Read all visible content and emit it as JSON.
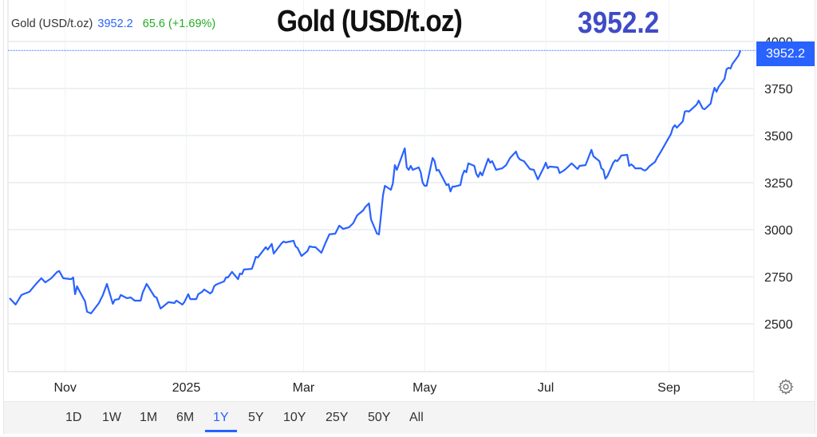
{
  "legend": {
    "name": "Gold (USD/t.oz)",
    "last": "3952.2",
    "change": "65.6 (+1.69%)"
  },
  "title": "Gold (USD/t.oz)",
  "headline_price": "3952.2",
  "price_tag": "3952.2",
  "colors": {
    "line": "#2962ff",
    "up": "#22ab22",
    "headline": "#3f4bc6",
    "grid": "#e9ecef"
  },
  "icons": {
    "settings": "gear-icon"
  },
  "range_buttons": [
    {
      "label": "1D"
    },
    {
      "label": "1W"
    },
    {
      "label": "1M"
    },
    {
      "label": "6M"
    },
    {
      "label": "1Y",
      "active": true
    },
    {
      "label": "5Y"
    },
    {
      "label": "10Y"
    },
    {
      "label": "25Y"
    },
    {
      "label": "50Y"
    },
    {
      "label": "All"
    }
  ],
  "chart_data": {
    "type": "line",
    "title": "",
    "xlabel": "",
    "ylabel": "",
    "xlim": [
      "2024-10-04",
      "2025-10-07"
    ],
    "ylim": [
      2250,
      4050
    ],
    "grid": true,
    "y_axis_position": "right",
    "yticks": [
      2500,
      2750,
      3000,
      3250,
      3500,
      3750,
      4000
    ],
    "xticks": [
      {
        "date": "2024-11-01",
        "label": "Nov"
      },
      {
        "date": "2025-01-01",
        "label": "2025"
      },
      {
        "date": "2025-03-01",
        "label": "Mar"
      },
      {
        "date": "2025-05-01",
        "label": "May"
      },
      {
        "date": "2025-07-01",
        "label": "Jul"
      },
      {
        "date": "2025-09-01",
        "label": "Sep"
      }
    ],
    "last_value": 3952.2,
    "series": [
      {
        "points": [
          [
            "2024-10-04",
            2636
          ],
          [
            "2024-10-07",
            2602
          ],
          [
            "2024-10-10",
            2653
          ],
          [
            "2024-10-14",
            2670
          ],
          [
            "2024-10-17",
            2708
          ],
          [
            "2024-10-20",
            2742
          ],
          [
            "2024-10-22",
            2720
          ],
          [
            "2024-10-25",
            2742
          ],
          [
            "2024-10-28",
            2776
          ],
          [
            "2024-10-29",
            2780
          ],
          [
            "2024-10-31",
            2742
          ],
          [
            "2024-11-04",
            2737
          ],
          [
            "2024-11-05",
            2746
          ],
          [
            "2024-11-06",
            2657
          ],
          [
            "2024-11-07",
            2699
          ],
          [
            "2024-11-08",
            2678
          ],
          [
            "2024-11-11",
            2619
          ],
          [
            "2024-11-12",
            2564
          ],
          [
            "2024-11-14",
            2555
          ],
          [
            "2024-11-18",
            2610
          ],
          [
            "2024-11-20",
            2653
          ],
          [
            "2024-11-22",
            2712
          ],
          [
            "2024-11-25",
            2606
          ],
          [
            "2024-11-26",
            2627
          ],
          [
            "2024-11-28",
            2631
          ],
          [
            "2024-11-29",
            2653
          ],
          [
            "2024-12-02",
            2636
          ],
          [
            "2024-12-04",
            2640
          ],
          [
            "2024-12-06",
            2623
          ],
          [
            "2024-12-09",
            2623
          ],
          [
            "2024-12-10",
            2665
          ],
          [
            "2024-12-12",
            2712
          ],
          [
            "2024-12-16",
            2644
          ],
          [
            "2024-12-17",
            2640
          ],
          [
            "2024-12-19",
            2581
          ],
          [
            "2024-12-20",
            2589
          ],
          [
            "2024-12-23",
            2615
          ],
          [
            "2024-12-26",
            2610
          ],
          [
            "2024-12-27",
            2623
          ],
          [
            "2024-12-30",
            2602
          ],
          [
            "2024-12-31",
            2615
          ],
          [
            "2025-01-02",
            2657
          ],
          [
            "2025-01-03",
            2631
          ],
          [
            "2025-01-06",
            2631
          ],
          [
            "2025-01-07",
            2657
          ],
          [
            "2025-01-09",
            2670
          ],
          [
            "2025-01-10",
            2682
          ],
          [
            "2025-01-13",
            2661
          ],
          [
            "2025-01-14",
            2670
          ],
          [
            "2025-01-15",
            2699
          ],
          [
            "2025-01-16",
            2708
          ],
          [
            "2025-01-20",
            2725
          ],
          [
            "2025-01-21",
            2746
          ],
          [
            "2025-01-22",
            2746
          ],
          [
            "2025-01-24",
            2776
          ],
          [
            "2025-01-27",
            2737
          ],
          [
            "2025-01-28",
            2767
          ],
          [
            "2025-01-29",
            2763
          ],
          [
            "2025-01-30",
            2788
          ],
          [
            "2025-02-03",
            2792
          ],
          [
            "2025-02-04",
            2822
          ],
          [
            "2025-02-05",
            2856
          ],
          [
            "2025-02-06",
            2852
          ],
          [
            "2025-02-10",
            2907
          ],
          [
            "2025-02-11",
            2894
          ],
          [
            "2025-02-13",
            2924
          ],
          [
            "2025-02-14",
            2873
          ],
          [
            "2025-02-18",
            2928
          ],
          [
            "2025-02-19",
            2937
          ],
          [
            "2025-02-20",
            2932
          ],
          [
            "2025-02-24",
            2941
          ],
          [
            "2025-02-25",
            2911
          ],
          [
            "2025-02-26",
            2903
          ],
          [
            "2025-02-28",
            2860
          ],
          [
            "2025-03-03",
            2886
          ],
          [
            "2025-03-04",
            2911
          ],
          [
            "2025-03-06",
            2907
          ],
          [
            "2025-03-07",
            2907
          ],
          [
            "2025-03-10",
            2877
          ],
          [
            "2025-03-12",
            2928
          ],
          [
            "2025-03-14",
            2975
          ],
          [
            "2025-03-17",
            2979
          ],
          [
            "2025-03-18",
            3000
          ],
          [
            "2025-03-19",
            3021
          ],
          [
            "2025-03-21",
            3004
          ],
          [
            "2025-03-24",
            3013
          ],
          [
            "2025-03-26",
            3034
          ],
          [
            "2025-03-28",
            3076
          ],
          [
            "2025-03-31",
            3102
          ],
          [
            "2025-04-01",
            3119
          ],
          [
            "2025-04-03",
            3140
          ],
          [
            "2025-04-04",
            3055
          ],
          [
            "2025-04-07",
            2979
          ],
          [
            "2025-04-08",
            2975
          ],
          [
            "2025-04-09",
            3076
          ],
          [
            "2025-04-10",
            3182
          ],
          [
            "2025-04-11",
            3233
          ],
          [
            "2025-04-14",
            3212
          ],
          [
            "2025-04-15",
            3246
          ],
          [
            "2025-04-16",
            3343
          ],
          [
            "2025-04-17",
            3318
          ],
          [
            "2025-04-21",
            3432
          ],
          [
            "2025-04-22",
            3331
          ],
          [
            "2025-04-23",
            3318
          ],
          [
            "2025-04-24",
            3339
          ],
          [
            "2025-04-25",
            3318
          ],
          [
            "2025-04-28",
            3331
          ],
          [
            "2025-04-29",
            3305
          ],
          [
            "2025-04-30",
            3250
          ],
          [
            "2025-05-01",
            3233
          ],
          [
            "2025-05-02",
            3233
          ],
          [
            "2025-05-05",
            3381
          ],
          [
            "2025-05-06",
            3364
          ],
          [
            "2025-05-07",
            3314
          ],
          [
            "2025-05-08",
            3318
          ],
          [
            "2025-05-12",
            3237
          ],
          [
            "2025-05-13",
            3242
          ],
          [
            "2025-05-14",
            3203
          ],
          [
            "2025-05-15",
            3229
          ],
          [
            "2025-05-16",
            3229
          ],
          [
            "2025-05-19",
            3237
          ],
          [
            "2025-05-20",
            3288
          ],
          [
            "2025-05-21",
            3314
          ],
          [
            "2025-05-22",
            3305
          ],
          [
            "2025-05-23",
            3352
          ],
          [
            "2025-05-26",
            3339
          ],
          [
            "2025-05-27",
            3297
          ],
          [
            "2025-05-28",
            3280
          ],
          [
            "2025-05-29",
            3305
          ],
          [
            "2025-05-30",
            3288
          ],
          [
            "2025-06-02",
            3377
          ],
          [
            "2025-06-03",
            3356
          ],
          [
            "2025-06-04",
            3364
          ],
          [
            "2025-06-06",
            3318
          ],
          [
            "2025-06-09",
            3326
          ],
          [
            "2025-06-11",
            3343
          ],
          [
            "2025-06-13",
            3381
          ],
          [
            "2025-06-16",
            3415
          ],
          [
            "2025-06-17",
            3386
          ],
          [
            "2025-06-18",
            3373
          ],
          [
            "2025-06-20",
            3364
          ],
          [
            "2025-06-23",
            3322
          ],
          [
            "2025-06-25",
            3318
          ],
          [
            "2025-06-27",
            3267
          ],
          [
            "2025-06-30",
            3331
          ],
          [
            "2025-07-01",
            3356
          ],
          [
            "2025-07-02",
            3326
          ],
          [
            "2025-07-03",
            3335
          ],
          [
            "2025-07-07",
            3331
          ],
          [
            "2025-07-08",
            3301
          ],
          [
            "2025-07-10",
            3314
          ],
          [
            "2025-07-11",
            3322
          ],
          [
            "2025-07-14",
            3352
          ],
          [
            "2025-07-15",
            3343
          ],
          [
            "2025-07-17",
            3322
          ],
          [
            "2025-07-18",
            3339
          ],
          [
            "2025-07-21",
            3343
          ],
          [
            "2025-07-22",
            3369
          ],
          [
            "2025-07-24",
            3424
          ],
          [
            "2025-07-25",
            3390
          ],
          [
            "2025-07-28",
            3364
          ],
          [
            "2025-07-29",
            3326
          ],
          [
            "2025-07-30",
            3318
          ],
          [
            "2025-07-31",
            3271
          ],
          [
            "2025-08-01",
            3284
          ],
          [
            "2025-08-04",
            3356
          ],
          [
            "2025-08-05",
            3369
          ],
          [
            "2025-08-06",
            3364
          ],
          [
            "2025-08-07",
            3377
          ],
          [
            "2025-08-08",
            3394
          ],
          [
            "2025-08-11",
            3398
          ],
          [
            "2025-08-12",
            3339
          ],
          [
            "2025-08-13",
            3347
          ],
          [
            "2025-08-14",
            3339
          ],
          [
            "2025-08-15",
            3326
          ],
          [
            "2025-08-18",
            3326
          ],
          [
            "2025-08-19",
            3318
          ],
          [
            "2025-08-20",
            3314
          ],
          [
            "2025-08-21",
            3322
          ],
          [
            "2025-08-22",
            3335
          ],
          [
            "2025-08-25",
            3360
          ],
          [
            "2025-08-26",
            3381
          ],
          [
            "2025-08-28",
            3415
          ],
          [
            "2025-09-02",
            3508
          ],
          [
            "2025-09-03",
            3542
          ],
          [
            "2025-09-04",
            3555
          ],
          [
            "2025-09-05",
            3542
          ],
          [
            "2025-09-08",
            3576
          ],
          [
            "2025-09-09",
            3627
          ],
          [
            "2025-09-10",
            3631
          ],
          [
            "2025-09-11",
            3627
          ],
          [
            "2025-09-12",
            3636
          ],
          [
            "2025-09-15",
            3665
          ],
          [
            "2025-09-16",
            3686
          ],
          [
            "2025-09-18",
            3644
          ],
          [
            "2025-09-19",
            3640
          ],
          [
            "2025-09-22",
            3670
          ],
          [
            "2025-09-23",
            3720
          ],
          [
            "2025-09-24",
            3754
          ],
          [
            "2025-09-25",
            3733
          ],
          [
            "2025-09-26",
            3758
          ],
          [
            "2025-09-29",
            3801
          ],
          [
            "2025-09-30",
            3852
          ],
          [
            "2025-10-01",
            3860
          ],
          [
            "2025-10-02",
            3856
          ],
          [
            "2025-10-03",
            3881
          ],
          [
            "2025-10-06",
            3924
          ],
          [
            "2025-10-07",
            3952.2
          ]
        ]
      }
    ]
  }
}
